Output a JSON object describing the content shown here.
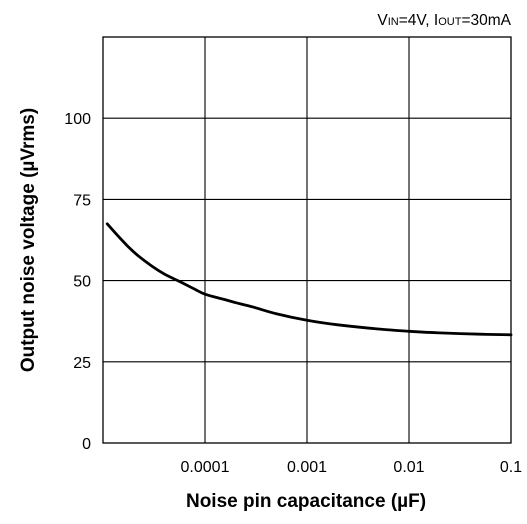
{
  "chart_data": {
    "type": "line",
    "annotation": {
      "v_main": "V",
      "v_sub": "IN",
      "v_value": "=4V, ",
      "i_main": "I",
      "i_sub": "OUT",
      "i_value": "=30mA"
    },
    "xlabel": "Noise pin capacitance (µF)",
    "ylabel": "Output noise voltage (µVrms)",
    "x_scale": "log",
    "xlim": [
      1e-05,
      0.1
    ],
    "ylim": [
      0,
      125
    ],
    "x_ticks": [
      {
        "value": 0.0001,
        "label": "0.0001"
      },
      {
        "value": 0.001,
        "label": "0.001"
      },
      {
        "value": 0.01,
        "label": "0.01"
      },
      {
        "value": 0.1,
        "label": "0.1"
      }
    ],
    "y_ticks": [
      {
        "value": 0,
        "label": "0"
      },
      {
        "value": 25,
        "label": "25"
      },
      {
        "value": 50,
        "label": "50"
      },
      {
        "value": 75,
        "label": "75"
      },
      {
        "value": 100,
        "label": "100"
      }
    ],
    "grid": true,
    "series": [
      {
        "color": "#000000",
        "x": [
          1.1e-05,
          1.4e-05,
          1.8e-05,
          2.2e-05,
          3e-05,
          4e-05,
          5e-05,
          6e-05,
          8e-05,
          0.0001,
          0.00015,
          0.0002,
          0.0003,
          0.0005,
          0.001,
          0.002,
          0.005,
          0.01,
          0.02,
          0.05,
          0.1
        ],
        "y": [
          67.5,
          63.8,
          60.2,
          57.7,
          54.5,
          52.0,
          50.5,
          49.3,
          47.3,
          45.8,
          44.3,
          43.2,
          41.8,
          39.8,
          37.8,
          36.4,
          35.1,
          34.4,
          33.9,
          33.5,
          33.3
        ]
      }
    ]
  }
}
